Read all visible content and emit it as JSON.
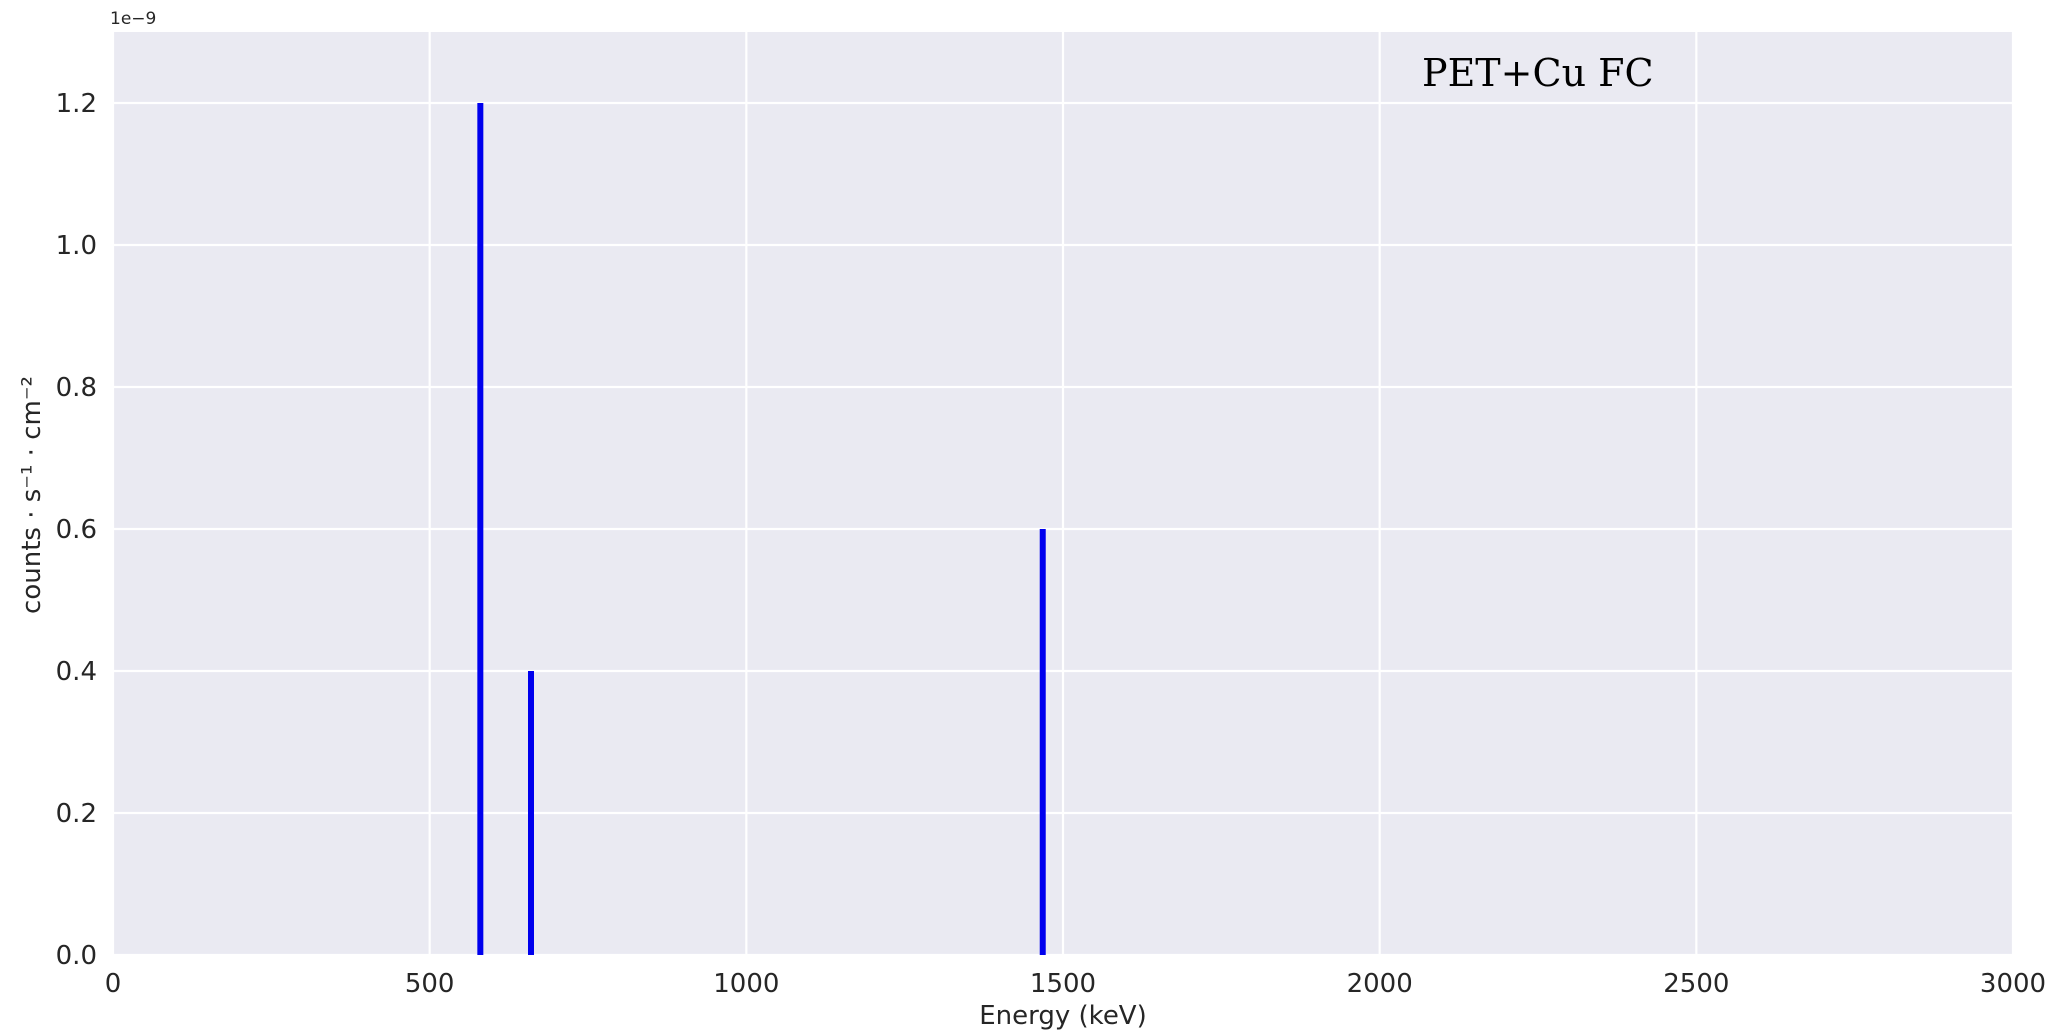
{
  "chart_data": {
    "type": "bar",
    "x": [
      580,
      660,
      1468
    ],
    "values": [
      1.2e-09,
      4e-10,
      6e-10
    ],
    "bar_color": "#0000ee",
    "background_color": "#eaeaf2",
    "grid_color": "#ffffff",
    "grid": true,
    "xlabel": "Energy (keV)",
    "ylabel": "counts · s⁻¹ · cm⁻²",
    "y_offset_label": "1e−9",
    "xlim": [
      0,
      3000
    ],
    "ylim": [
      0,
      1.3
    ],
    "x_ticks": [
      0,
      500,
      1000,
      1500,
      2000,
      2500,
      3000
    ],
    "x_tick_labels": [
      "0",
      "500",
      "1000",
      "1500",
      "2000",
      "2500",
      "3000"
    ],
    "y_ticks": [
      0,
      0.2,
      0.4,
      0.6,
      0.8,
      1.0,
      1.2
    ],
    "y_tick_labels": [
      "0.0",
      "0.2",
      "0.4",
      "0.6",
      "0.8",
      "1.0",
      "1.2"
    ],
    "annotation": "PET+Cu FC"
  }
}
